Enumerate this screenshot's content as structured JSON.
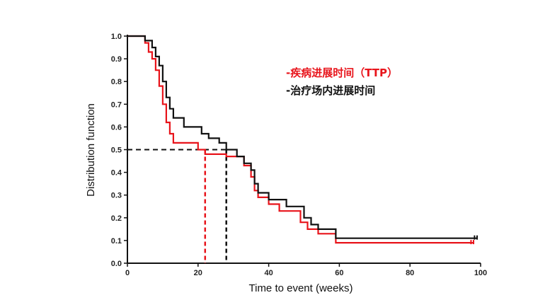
{
  "chart_data": {
    "type": "line",
    "xlabel": "Time to event (weeks)",
    "ylabel": "Distribution function",
    "xlim": [
      0,
      100
    ],
    "ylim": [
      0,
      1.0
    ],
    "x_ticks": [
      "0",
      "20",
      "40",
      "60",
      "80",
      "100"
    ],
    "y_ticks": [
      "0.0",
      "0.1",
      "0.2",
      "0.3",
      "0.4",
      "0.5",
      "0.6",
      "0.7",
      "0.8",
      "0.9",
      "1.0"
    ],
    "series": [
      {
        "name": "-疾病进展时间（TTP）",
        "color": "#e8141b",
        "points": [
          [
            0,
            1.0
          ],
          [
            5,
            1.0
          ],
          [
            5,
            0.97
          ],
          [
            6,
            0.97
          ],
          [
            6,
            0.93
          ],
          [
            7,
            0.93
          ],
          [
            7,
            0.9
          ],
          [
            8,
            0.9
          ],
          [
            8,
            0.85
          ],
          [
            9,
            0.85
          ],
          [
            9,
            0.78
          ],
          [
            10,
            0.78
          ],
          [
            10,
            0.7
          ],
          [
            11,
            0.7
          ],
          [
            11,
            0.62
          ],
          [
            12,
            0.62
          ],
          [
            12,
            0.57
          ],
          [
            13,
            0.57
          ],
          [
            13,
            0.53
          ],
          [
            20,
            0.53
          ],
          [
            20,
            0.5
          ],
          [
            22,
            0.5
          ],
          [
            22,
            0.48
          ],
          [
            28,
            0.48
          ],
          [
            28,
            0.47
          ],
          [
            33,
            0.47
          ],
          [
            33,
            0.43
          ],
          [
            35,
            0.43
          ],
          [
            35,
            0.38
          ],
          [
            36,
            0.38
          ],
          [
            36,
            0.32
          ],
          [
            37,
            0.32
          ],
          [
            37,
            0.29
          ],
          [
            40,
            0.29
          ],
          [
            40,
            0.26
          ],
          [
            43,
            0.26
          ],
          [
            43,
            0.23
          ],
          [
            49,
            0.23
          ],
          [
            49,
            0.18
          ],
          [
            51,
            0.18
          ],
          [
            51,
            0.15
          ],
          [
            54,
            0.15
          ],
          [
            54,
            0.13
          ],
          [
            59,
            0.13
          ],
          [
            59,
            0.09
          ],
          [
            98,
            0.09
          ]
        ]
      },
      {
        "name": "-治疗场内进展时间",
        "color": "#111111",
        "points": [
          [
            0,
            1.0
          ],
          [
            5,
            1.0
          ],
          [
            5,
            0.98
          ],
          [
            7,
            0.98
          ],
          [
            7,
            0.95
          ],
          [
            8,
            0.95
          ],
          [
            8,
            0.91
          ],
          [
            9,
            0.91
          ],
          [
            9,
            0.87
          ],
          [
            10,
            0.87
          ],
          [
            10,
            0.8
          ],
          [
            11,
            0.8
          ],
          [
            11,
            0.73
          ],
          [
            12,
            0.73
          ],
          [
            12,
            0.68
          ],
          [
            13,
            0.68
          ],
          [
            13,
            0.64
          ],
          [
            16,
            0.64
          ],
          [
            16,
            0.6
          ],
          [
            21,
            0.6
          ],
          [
            21,
            0.57
          ],
          [
            23,
            0.57
          ],
          [
            23,
            0.55
          ],
          [
            26,
            0.55
          ],
          [
            26,
            0.53
          ],
          [
            28,
            0.53
          ],
          [
            28,
            0.5
          ],
          [
            31,
            0.5
          ],
          [
            31,
            0.47
          ],
          [
            33,
            0.47
          ],
          [
            33,
            0.44
          ],
          [
            35,
            0.44
          ],
          [
            35,
            0.41
          ],
          [
            36,
            0.41
          ],
          [
            36,
            0.35
          ],
          [
            37,
            0.35
          ],
          [
            37,
            0.31
          ],
          [
            40,
            0.31
          ],
          [
            40,
            0.28
          ],
          [
            45,
            0.28
          ],
          [
            45,
            0.25
          ],
          [
            50,
            0.25
          ],
          [
            50,
            0.2
          ],
          [
            52,
            0.2
          ],
          [
            52,
            0.17
          ],
          [
            54,
            0.17
          ],
          [
            54,
            0.15
          ],
          [
            59,
            0.15
          ],
          [
            59,
            0.11
          ],
          [
            99,
            0.11
          ]
        ]
      }
    ],
    "reference_lines": [
      {
        "color": "#e8141b",
        "y": 0.5,
        "x": 22
      },
      {
        "color": "#111111",
        "y": 0.5,
        "x": 28
      }
    ]
  }
}
